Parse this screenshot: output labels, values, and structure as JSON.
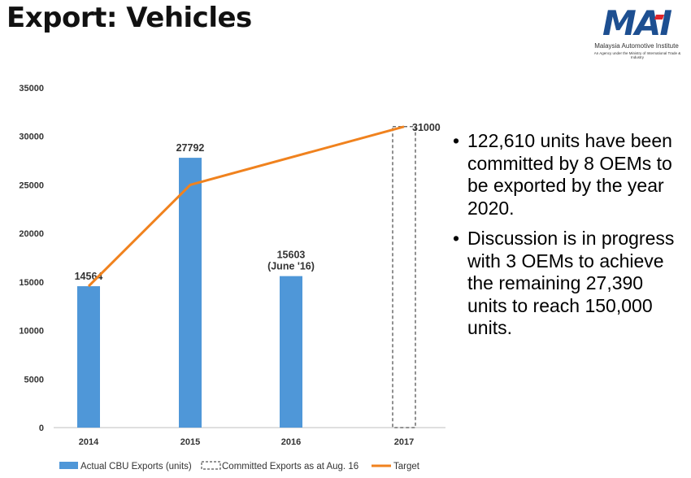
{
  "slide": {
    "title": "Export: Vehicles",
    "logo": {
      "brand": "MAI",
      "name": "Malaysia Automotive Institute",
      "subtitle": "An Agency under the Ministry of International Trade & Industry"
    },
    "bullets": [
      "122,610 units have been committed by 8 OEMs to be exported by the year 2020.",
      "Discussion is in progress with 3 OEMs to achieve the remaining 27,390 units to reach 150,000 units."
    ]
  },
  "chart_data": {
    "type": "bar",
    "categories": [
      "2014",
      "2015",
      "2016",
      "2017"
    ],
    "ylim": [
      0,
      35000
    ],
    "yticks": [
      0,
      5000,
      10000,
      15000,
      20000,
      25000,
      30000,
      35000
    ],
    "series": [
      {
        "name": "Actual CBU Exports (units)",
        "type": "bar",
        "color": "#4f97d8",
        "values": [
          14564,
          27792,
          15603,
          null
        ],
        "labels": [
          "14564",
          "27792",
          "15603\n(June '16)",
          ""
        ]
      },
      {
        "name": "Committed Exports as at Aug. 16",
        "type": "bar-dashed",
        "color": "#555555",
        "values": [
          null,
          null,
          null,
          31000
        ],
        "labels": [
          "",
          "",
          "",
          "31000"
        ]
      },
      {
        "name": "Target",
        "type": "line",
        "color": "#f0821e",
        "values": [
          14564,
          25000,
          null,
          31000
        ]
      }
    ],
    "legend_position": "bottom"
  }
}
